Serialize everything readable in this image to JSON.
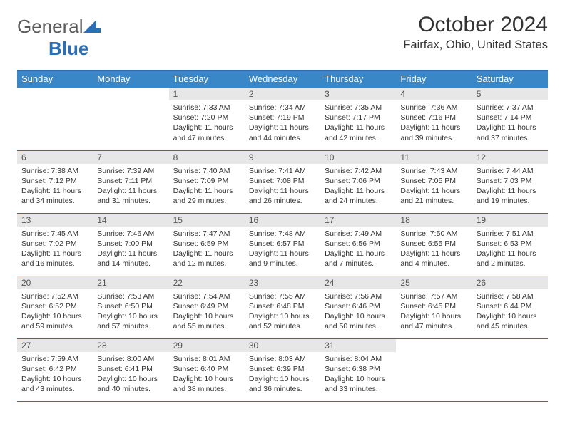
{
  "brand": {
    "name_part1": "General",
    "name_part2": "Blue"
  },
  "title": "October 2024",
  "location": "Fairfax, Ohio, United States",
  "colors": {
    "header_bg": "#3a87c8",
    "header_border": "#2c6fb5",
    "daynum_bg": "#e7e7e7",
    "text": "#333333",
    "logo_gray": "#5a5a5a",
    "logo_blue": "#2c6fb5"
  },
  "weekdays": [
    "Sunday",
    "Monday",
    "Tuesday",
    "Wednesday",
    "Thursday",
    "Friday",
    "Saturday"
  ],
  "weeks": [
    [
      null,
      null,
      {
        "n": "1",
        "sunrise": "Sunrise: 7:33 AM",
        "sunset": "Sunset: 7:20 PM",
        "daylight": "Daylight: 11 hours and 47 minutes."
      },
      {
        "n": "2",
        "sunrise": "Sunrise: 7:34 AM",
        "sunset": "Sunset: 7:19 PM",
        "daylight": "Daylight: 11 hours and 44 minutes."
      },
      {
        "n": "3",
        "sunrise": "Sunrise: 7:35 AM",
        "sunset": "Sunset: 7:17 PM",
        "daylight": "Daylight: 11 hours and 42 minutes."
      },
      {
        "n": "4",
        "sunrise": "Sunrise: 7:36 AM",
        "sunset": "Sunset: 7:16 PM",
        "daylight": "Daylight: 11 hours and 39 minutes."
      },
      {
        "n": "5",
        "sunrise": "Sunrise: 7:37 AM",
        "sunset": "Sunset: 7:14 PM",
        "daylight": "Daylight: 11 hours and 37 minutes."
      }
    ],
    [
      {
        "n": "6",
        "sunrise": "Sunrise: 7:38 AM",
        "sunset": "Sunset: 7:12 PM",
        "daylight": "Daylight: 11 hours and 34 minutes."
      },
      {
        "n": "7",
        "sunrise": "Sunrise: 7:39 AM",
        "sunset": "Sunset: 7:11 PM",
        "daylight": "Daylight: 11 hours and 31 minutes."
      },
      {
        "n": "8",
        "sunrise": "Sunrise: 7:40 AM",
        "sunset": "Sunset: 7:09 PM",
        "daylight": "Daylight: 11 hours and 29 minutes."
      },
      {
        "n": "9",
        "sunrise": "Sunrise: 7:41 AM",
        "sunset": "Sunset: 7:08 PM",
        "daylight": "Daylight: 11 hours and 26 minutes."
      },
      {
        "n": "10",
        "sunrise": "Sunrise: 7:42 AM",
        "sunset": "Sunset: 7:06 PM",
        "daylight": "Daylight: 11 hours and 24 minutes."
      },
      {
        "n": "11",
        "sunrise": "Sunrise: 7:43 AM",
        "sunset": "Sunset: 7:05 PM",
        "daylight": "Daylight: 11 hours and 21 minutes."
      },
      {
        "n": "12",
        "sunrise": "Sunrise: 7:44 AM",
        "sunset": "Sunset: 7:03 PM",
        "daylight": "Daylight: 11 hours and 19 minutes."
      }
    ],
    [
      {
        "n": "13",
        "sunrise": "Sunrise: 7:45 AM",
        "sunset": "Sunset: 7:02 PM",
        "daylight": "Daylight: 11 hours and 16 minutes."
      },
      {
        "n": "14",
        "sunrise": "Sunrise: 7:46 AM",
        "sunset": "Sunset: 7:00 PM",
        "daylight": "Daylight: 11 hours and 14 minutes."
      },
      {
        "n": "15",
        "sunrise": "Sunrise: 7:47 AM",
        "sunset": "Sunset: 6:59 PM",
        "daylight": "Daylight: 11 hours and 12 minutes."
      },
      {
        "n": "16",
        "sunrise": "Sunrise: 7:48 AM",
        "sunset": "Sunset: 6:57 PM",
        "daylight": "Daylight: 11 hours and 9 minutes."
      },
      {
        "n": "17",
        "sunrise": "Sunrise: 7:49 AM",
        "sunset": "Sunset: 6:56 PM",
        "daylight": "Daylight: 11 hours and 7 minutes."
      },
      {
        "n": "18",
        "sunrise": "Sunrise: 7:50 AM",
        "sunset": "Sunset: 6:55 PM",
        "daylight": "Daylight: 11 hours and 4 minutes."
      },
      {
        "n": "19",
        "sunrise": "Sunrise: 7:51 AM",
        "sunset": "Sunset: 6:53 PM",
        "daylight": "Daylight: 11 hours and 2 minutes."
      }
    ],
    [
      {
        "n": "20",
        "sunrise": "Sunrise: 7:52 AM",
        "sunset": "Sunset: 6:52 PM",
        "daylight": "Daylight: 10 hours and 59 minutes."
      },
      {
        "n": "21",
        "sunrise": "Sunrise: 7:53 AM",
        "sunset": "Sunset: 6:50 PM",
        "daylight": "Daylight: 10 hours and 57 minutes."
      },
      {
        "n": "22",
        "sunrise": "Sunrise: 7:54 AM",
        "sunset": "Sunset: 6:49 PM",
        "daylight": "Daylight: 10 hours and 55 minutes."
      },
      {
        "n": "23",
        "sunrise": "Sunrise: 7:55 AM",
        "sunset": "Sunset: 6:48 PM",
        "daylight": "Daylight: 10 hours and 52 minutes."
      },
      {
        "n": "24",
        "sunrise": "Sunrise: 7:56 AM",
        "sunset": "Sunset: 6:46 PM",
        "daylight": "Daylight: 10 hours and 50 minutes."
      },
      {
        "n": "25",
        "sunrise": "Sunrise: 7:57 AM",
        "sunset": "Sunset: 6:45 PM",
        "daylight": "Daylight: 10 hours and 47 minutes."
      },
      {
        "n": "26",
        "sunrise": "Sunrise: 7:58 AM",
        "sunset": "Sunset: 6:44 PM",
        "daylight": "Daylight: 10 hours and 45 minutes."
      }
    ],
    [
      {
        "n": "27",
        "sunrise": "Sunrise: 7:59 AM",
        "sunset": "Sunset: 6:42 PM",
        "daylight": "Daylight: 10 hours and 43 minutes."
      },
      {
        "n": "28",
        "sunrise": "Sunrise: 8:00 AM",
        "sunset": "Sunset: 6:41 PM",
        "daylight": "Daylight: 10 hours and 40 minutes."
      },
      {
        "n": "29",
        "sunrise": "Sunrise: 8:01 AM",
        "sunset": "Sunset: 6:40 PM",
        "daylight": "Daylight: 10 hours and 38 minutes."
      },
      {
        "n": "30",
        "sunrise": "Sunrise: 8:03 AM",
        "sunset": "Sunset: 6:39 PM",
        "daylight": "Daylight: 10 hours and 36 minutes."
      },
      {
        "n": "31",
        "sunrise": "Sunrise: 8:04 AM",
        "sunset": "Sunset: 6:38 PM",
        "daylight": "Daylight: 10 hours and 33 minutes."
      },
      null,
      null
    ]
  ]
}
